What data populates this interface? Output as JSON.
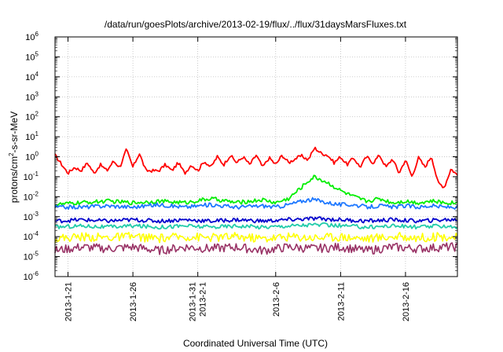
{
  "chart_data": {
    "type": "line",
    "title": "/data/run/goesPlots/archive/2013-02-19/flux/../flux/31daysMarsFluxes.txt",
    "xlabel": "Coordinated Universal Time (UTC)",
    "ylabel": "protons/cm2-sr-s-MeV",
    "ylabel_parts": {
      "a": "protons/cm",
      "sup": "2",
      "b": "-s-sr-MeV"
    },
    "yscale": "log",
    "ylim_exp": [
      -6,
      6
    ],
    "y_ticks": [
      {
        "base": "10",
        "exp": "-6"
      },
      {
        "base": "10",
        "exp": "-5"
      },
      {
        "base": "10",
        "exp": "-4"
      },
      {
        "base": "10",
        "exp": "-3"
      },
      {
        "base": "10",
        "exp": "-2"
      },
      {
        "base": "10",
        "exp": "-1"
      },
      {
        "base": "10",
        "exp": "0"
      },
      {
        "base": "10",
        "exp": "1"
      },
      {
        "base": "10",
        "exp": "2"
      },
      {
        "base": "10",
        "exp": "3"
      },
      {
        "base": "10",
        "exp": "4"
      },
      {
        "base": "10",
        "exp": "5"
      },
      {
        "base": "10",
        "exp": "6"
      }
    ],
    "xlim_days": [
      0,
      31
    ],
    "x_ticks": [
      {
        "day": 1,
        "lines": [
          "2013-1-21"
        ]
      },
      {
        "day": 6,
        "lines": [
          "2013-1-26"
        ]
      },
      {
        "day": 11,
        "lines": [
          "2013-1-31",
          "2013-2-1"
        ]
      },
      {
        "day": 17,
        "lines": [
          "2013-2-6"
        ]
      },
      {
        "day": 22,
        "lines": [
          "2013-2-11"
        ]
      },
      {
        "day": 27,
        "lines": [
          "2013-2-16"
        ]
      }
    ],
    "grid": true,
    "series": [
      {
        "color": "#ff0000",
        "x": [
          0,
          1,
          1.5,
          2,
          2.5,
          3,
          3.5,
          4,
          4.5,
          5,
          5.5,
          6,
          6.5,
          7,
          7.5,
          8,
          8.5,
          9,
          9.5,
          10,
          10.5,
          11,
          11.5,
          12,
          12.5,
          13,
          13.5,
          14,
          14.5,
          15,
          15.5,
          16,
          16.5,
          17,
          17.5,
          18,
          18.5,
          19,
          19.5,
          20,
          20.5,
          21,
          21.5,
          22,
          22.5,
          23,
          23.5,
          24,
          24.5,
          25,
          25.5,
          26,
          26.5,
          27,
          27.5,
          28,
          28.5,
          29,
          29.5,
          30,
          30.5,
          31
        ],
        "y": [
          1.2,
          0.15,
          0.3,
          0.2,
          0.5,
          0.15,
          0.4,
          0.2,
          0.6,
          0.3,
          2.3,
          0.3,
          1.5,
          0.2,
          0.2,
          0.2,
          0.4,
          0.2,
          0.5,
          0.15,
          0.4,
          0.2,
          0.6,
          0.3,
          1.0,
          0.4,
          1.2,
          0.5,
          1.0,
          0.4,
          1.2,
          0.3,
          0.9,
          0.4,
          1.2,
          0.5,
          0.8,
          1.1,
          0.7,
          2.8,
          1.5,
          1.2,
          0.5,
          1.0,
          0.4,
          0.9,
          0.3,
          1.0,
          0.5,
          1.2,
          0.3,
          0.8,
          0.15,
          0.7,
          0.1,
          0.9,
          0.3,
          1.1,
          0.05,
          0.03,
          0.25,
          0.12
        ]
      },
      {
        "color": "#00ee00",
        "x": [
          0,
          2,
          4,
          6,
          8,
          10,
          12,
          14,
          16,
          17,
          18,
          19,
          19.5,
          20,
          20.5,
          21,
          22,
          23,
          24,
          25,
          26,
          27,
          28,
          29,
          30,
          31
        ],
        "y": [
          0.004,
          0.005,
          0.006,
          0.005,
          0.006,
          0.005,
          0.008,
          0.005,
          0.007,
          0.005,
          0.008,
          0.03,
          0.06,
          0.1,
          0.07,
          0.05,
          0.02,
          0.01,
          0.006,
          0.008,
          0.005,
          0.006,
          0.005,
          0.006,
          0.005,
          0.005
        ]
      },
      {
        "color": "#1e78ff",
        "x": [
          0,
          2,
          4,
          6,
          8,
          10,
          12,
          14,
          16,
          17,
          18,
          19,
          19.5,
          20,
          20.5,
          21,
          22,
          23,
          24,
          25,
          26,
          27,
          28,
          29,
          30,
          31
        ],
        "y": [
          0.003,
          0.003,
          0.0035,
          0.003,
          0.004,
          0.003,
          0.004,
          0.003,
          0.0035,
          0.003,
          0.004,
          0.006,
          0.007,
          0.007,
          0.006,
          0.005,
          0.004,
          0.004,
          0.003,
          0.0035,
          0.003,
          0.0035,
          0.003,
          0.0035,
          0.003,
          0.003
        ]
      },
      {
        "color": "#0000cc",
        "x": [
          0,
          2,
          4,
          6,
          8,
          10,
          12,
          14,
          16,
          18,
          20,
          22,
          24,
          26,
          28,
          30,
          31
        ],
        "y": [
          0.0006,
          0.0007,
          0.0006,
          0.0007,
          0.0006,
          0.0007,
          0.0006,
          0.0007,
          0.0006,
          0.0007,
          0.0008,
          0.0007,
          0.0006,
          0.0007,
          0.0006,
          0.0007,
          0.0007
        ]
      },
      {
        "color": "#22ccaa",
        "x": [
          0,
          2,
          4,
          6,
          8,
          10,
          12,
          14,
          16,
          18,
          20,
          22,
          24,
          26,
          28,
          30,
          31
        ],
        "y": [
          0.0003,
          0.00035,
          0.0003,
          0.00035,
          0.0003,
          0.00035,
          0.0003,
          0.00035,
          0.0003,
          0.00035,
          0.0004,
          0.00035,
          0.0003,
          0.00035,
          0.0003,
          0.00035,
          0.0003
        ]
      },
      {
        "color": "#ffff00",
        "x": [
          0,
          2,
          4,
          6,
          8,
          10,
          12,
          14,
          16,
          18,
          20,
          22,
          24,
          26,
          28,
          30,
          31
        ],
        "y": [
          8e-05,
          0.0001,
          9e-05,
          0.0001,
          8e-05,
          0.0001,
          9e-05,
          0.0001,
          8e-05,
          0.0001,
          9e-05,
          0.0001,
          8e-05,
          0.0001,
          9e-05,
          0.0001,
          9e-05
        ]
      },
      {
        "color": "#993366",
        "x": [
          0,
          2,
          4,
          6,
          8,
          10,
          12,
          14,
          16,
          18,
          20,
          22,
          24,
          26,
          28,
          30,
          31
        ],
        "y": [
          2e-05,
          3e-05,
          2.5e-05,
          3e-05,
          2e-05,
          3e-05,
          2.5e-05,
          3e-05,
          2e-05,
          3e-05,
          2.5e-05,
          3e-05,
          2e-05,
          3e-05,
          2.5e-05,
          3e-05,
          3e-05
        ]
      }
    ]
  }
}
